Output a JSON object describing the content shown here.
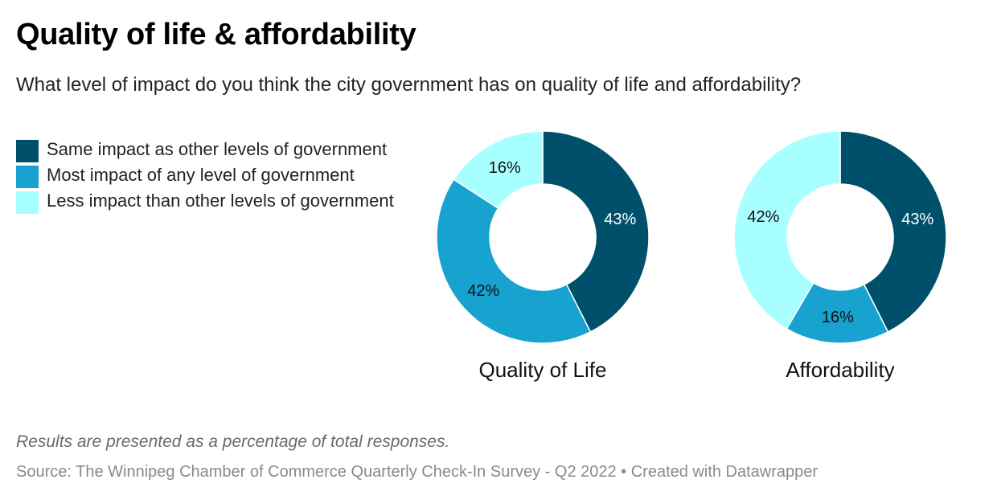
{
  "header": {
    "title": "Quality of life & affordability",
    "subtitle": "What level of impact do you think the city government has on quality of life and affordability?"
  },
  "legend": [
    {
      "label": "Same impact as other levels of government",
      "color": "#00506b"
    },
    {
      "label": "Most impact of any level of government",
      "color": "#17a2d0"
    },
    {
      "label": "Less impact than other levels of government",
      "color": "#a7ffff"
    }
  ],
  "footer": {
    "note": "Results are presented as a percentage of total responses.",
    "source": "Source: The Winnipeg Chamber of Commerce Quarterly Check-In Survey - Q2 2022 • Created with Datawrapper"
  },
  "chart_data": [
    {
      "type": "pie",
      "title": "Quality of Life",
      "slices": [
        {
          "name": "Same impact as other levels of government",
          "value": 43,
          "label": "43%",
          "color": "#00506b"
        },
        {
          "name": "Most impact of any level of government",
          "value": 42,
          "label": "42%",
          "color": "#17a2d0"
        },
        {
          "name": "Less impact than other levels of government",
          "value": 16,
          "label": "16%",
          "color": "#a7ffff"
        }
      ]
    },
    {
      "type": "pie",
      "title": "Affordability",
      "slices": [
        {
          "name": "Same impact as other levels of government",
          "value": 43,
          "label": "43%",
          "color": "#00506b"
        },
        {
          "name": "Most impact of any level of government",
          "value": 16,
          "label": "16%",
          "color": "#17a2d0"
        },
        {
          "name": "Less impact than other levels of government",
          "value": 42,
          "label": "42%",
          "color": "#a7ffff"
        }
      ]
    }
  ]
}
